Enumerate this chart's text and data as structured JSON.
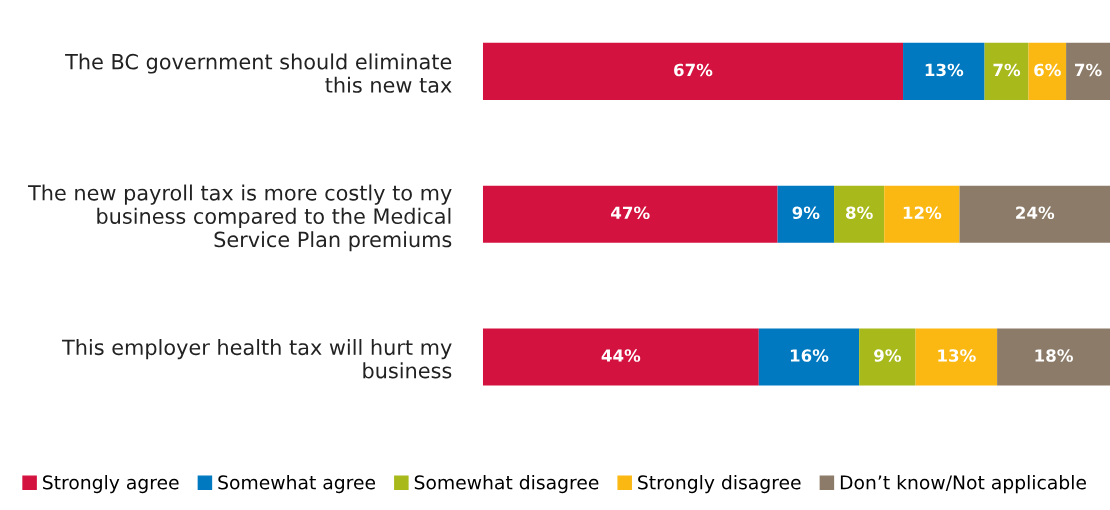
{
  "chart_data": {
    "type": "bar",
    "orientation": "horizontal",
    "stacked": true,
    "categories": [
      "The BC government should eliminate\nthis new tax",
      "The new payroll tax is more costly to my\nbusiness compared to the Medical\nService Plan premiums",
      "This employer health tax will hurt my\nbusiness"
    ],
    "series": [
      {
        "name": "Strongly agree",
        "color": "#d4123f",
        "values": [
          67,
          47,
          44
        ],
        "value_labels": [
          "67%",
          "47%",
          "44%"
        ]
      },
      {
        "name": "Somewhat agree",
        "color": "#0079c1",
        "values": [
          13,
          9,
          16
        ],
        "value_labels": [
          "13%",
          "9%",
          "16%"
        ]
      },
      {
        "name": "Somewhat disagree",
        "color": "#a8b91b",
        "values": [
          7,
          8,
          9
        ],
        "value_labels": [
          "7%",
          "8%",
          "9%"
        ]
      },
      {
        "name": "Strongly disagree",
        "color": "#fbb813",
        "values": [
          6,
          12,
          13
        ],
        "value_labels": [
          "6%",
          "12%",
          "13%"
        ]
      },
      {
        "name": "Don’t know/Not applicable",
        "color": "#8c7b68",
        "values": [
          7,
          24,
          18
        ],
        "value_labels": [
          "7%",
          "24%",
          "18%"
        ]
      }
    ],
    "tick_labels": "y",
    "grid": false,
    "legend": "bottom"
  }
}
